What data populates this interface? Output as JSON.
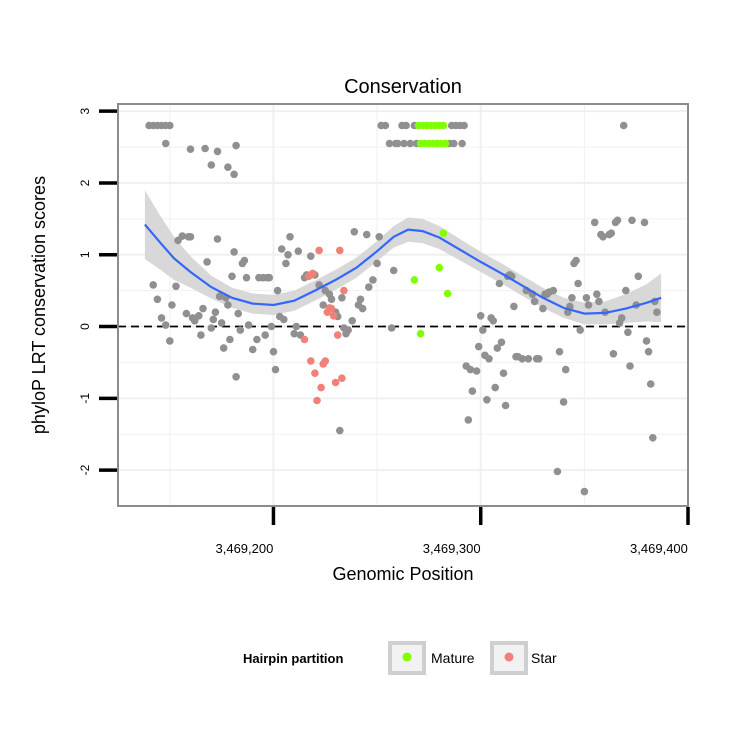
{
  "chart_data": {
    "type": "scatter",
    "title": "Conservation",
    "xlabel": "Genomic Position",
    "ylabel": "phyloP LRT conservation scores",
    "xlim": [
      3469125,
      3469400
    ],
    "ylim": [
      -2.5,
      3.1
    ],
    "x_ticks": [
      {
        "value": 3469200,
        "label": "3,469,200"
      },
      {
        "value": 3469300,
        "label": "3,469,300"
      },
      {
        "value": 3469400,
        "label": "3,469,400"
      }
    ],
    "y_ticks": [
      {
        "value": -2,
        "label": "-2"
      },
      {
        "value": -1,
        "label": "-1"
      },
      {
        "value": 0,
        "label": "0"
      },
      {
        "value": 1,
        "label": "1"
      },
      {
        "value": 2,
        "label": "2"
      },
      {
        "value": 3,
        "label": "3"
      }
    ],
    "grid": true,
    "reference_line": {
      "y": 0,
      "style": "dashed"
    },
    "legend": {
      "title": "Hairpin partition",
      "placement": "bottom",
      "entries": [
        {
          "label": "Mature",
          "color": "#7fff00"
        },
        {
          "label": "Star",
          "color": "#f08078"
        }
      ]
    },
    "colors": {
      "other": "#909090",
      "mature": "#7fff00",
      "star": "#f08078",
      "smooth": "#3366ff",
      "band": "#d4d4d4"
    },
    "series": [
      {
        "group": "other",
        "points": [
          [
            3469140,
            2.8
          ],
          [
            3469142,
            2.8
          ],
          [
            3469144,
            2.8
          ],
          [
            3469146,
            2.8
          ],
          [
            3469148,
            2.8
          ],
          [
            3469150,
            2.8
          ],
          [
            3469148,
            2.55
          ],
          [
            3469167,
            2.48
          ],
          [
            3469160,
            2.47
          ],
          [
            3469173,
            2.44
          ],
          [
            3469170,
            2.25
          ],
          [
            3469178,
            2.22
          ],
          [
            3469181,
            2.12
          ],
          [
            3469182,
            2.52
          ],
          [
            3469142,
            0.58
          ],
          [
            3469144,
            0.38
          ],
          [
            3469146,
            0.12
          ],
          [
            3469148,
            0.02
          ],
          [
            3469150,
            -0.2
          ],
          [
            3469151,
            0.3
          ],
          [
            3469153,
            0.56
          ],
          [
            3469154,
            1.2
          ],
          [
            3469156,
            1.26
          ],
          [
            3469158,
            0.18
          ],
          [
            3469159,
            1.25
          ],
          [
            3469160,
            1.25
          ],
          [
            3469161,
            0.12
          ],
          [
            3469162,
            0.08
          ],
          [
            3469164,
            0.15
          ],
          [
            3469165,
            -0.12
          ],
          [
            3469166,
            0.25
          ],
          [
            3469168,
            0.9
          ],
          [
            3469170,
            -0.02
          ],
          [
            3469171,
            0.1
          ],
          [
            3469172,
            0.2
          ],
          [
            3469173,
            1.22
          ],
          [
            3469174,
            0.42
          ],
          [
            3469175,
            0.05
          ],
          [
            3469176,
            -0.3
          ],
          [
            3469177,
            0.4
          ],
          [
            3469178,
            0.3
          ],
          [
            3469179,
            -0.18
          ],
          [
            3469180,
            0.7
          ],
          [
            3469181,
            1.04
          ],
          [
            3469182,
            -0.7
          ],
          [
            3469183,
            0.18
          ],
          [
            3469184,
            -0.05
          ],
          [
            3469185,
            0.88
          ],
          [
            3469186,
            0.92
          ],
          [
            3469187,
            0.68
          ],
          [
            3469188,
            0.02
          ],
          [
            3469190,
            -0.32
          ],
          [
            3469192,
            -0.18
          ],
          [
            3469193,
            0.68
          ],
          [
            3469195,
            0.68
          ],
          [
            3469196,
            -0.12
          ],
          [
            3469197,
            0.68
          ],
          [
            3469198,
            0.68
          ],
          [
            3469199,
            0.0
          ],
          [
            3469200,
            -0.35
          ],
          [
            3469201,
            -0.6
          ],
          [
            3469202,
            0.5
          ],
          [
            3469203,
            0.14
          ],
          [
            3469204,
            1.08
          ],
          [
            3469205,
            0.1
          ],
          [
            3469206,
            0.88
          ],
          [
            3469207,
            1.0
          ],
          [
            3469208,
            1.25
          ],
          [
            3469210,
            -0.1
          ],
          [
            3469211,
            0.0
          ],
          [
            3469212,
            1.05
          ],
          [
            3469213,
            -0.12
          ],
          [
            3469215,
            0.68
          ],
          [
            3469216,
            0.72
          ],
          [
            3469218,
            0.98
          ],
          [
            3469220,
            0.72
          ],
          [
            3469222,
            0.58
          ],
          [
            3469224,
            0.3
          ],
          [
            3469225,
            0.5
          ],
          [
            3469227,
            0.45
          ],
          [
            3469228,
            0.38
          ],
          [
            3469230,
            0.2
          ],
          [
            3469231,
            0.14
          ],
          [
            3469232,
            -1.45
          ],
          [
            3469233,
            0.4
          ],
          [
            3469234,
            -0.02
          ],
          [
            3469235,
            -0.1
          ],
          [
            3469236,
            -0.05
          ],
          [
            3469238,
            0.08
          ],
          [
            3469239,
            1.32
          ],
          [
            3469241,
            0.3
          ],
          [
            3469242,
            0.38
          ],
          [
            3469243,
            0.25
          ],
          [
            3469245,
            1.28
          ],
          [
            3469246,
            0.55
          ],
          [
            3469248,
            0.65
          ],
          [
            3469250,
            0.88
          ],
          [
            3469251,
            1.25
          ],
          [
            3469252,
            2.8
          ],
          [
            3469254,
            2.8
          ],
          [
            3469256,
            2.55
          ],
          [
            3469257,
            -0.02
          ],
          [
            3469258,
            0.78
          ],
          [
            3469259,
            2.55
          ],
          [
            3469260,
            2.55
          ],
          [
            3469262,
            2.8
          ],
          [
            3469263,
            2.55
          ],
          [
            3469264,
            2.8
          ],
          [
            3469266,
            2.55
          ],
          [
            3469268,
            2.8
          ],
          [
            3469269,
            2.55
          ],
          [
            3469285,
            2.55
          ],
          [
            3469286,
            2.8
          ],
          [
            3469287,
            2.55
          ],
          [
            3469288,
            2.8
          ],
          [
            3469290,
            2.8
          ],
          [
            3469291,
            2.55
          ],
          [
            3469292,
            2.8
          ],
          [
            3469293,
            -0.55
          ],
          [
            3469294,
            -1.3
          ],
          [
            3469295,
            -0.6
          ],
          [
            3469296,
            -0.9
          ],
          [
            3469298,
            -0.62
          ],
          [
            3469299,
            -0.28
          ],
          [
            3469300,
            0.15
          ],
          [
            3469301,
            -0.05
          ],
          [
            3469302,
            -0.4
          ],
          [
            3469303,
            -1.02
          ],
          [
            3469304,
            -0.45
          ],
          [
            3469305,
            0.12
          ],
          [
            3469306,
            0.08
          ],
          [
            3469307,
            -0.85
          ],
          [
            3469308,
            -0.3
          ],
          [
            3469309,
            0.6
          ],
          [
            3469310,
            -0.22
          ],
          [
            3469311,
            -0.65
          ],
          [
            3469312,
            -1.1
          ],
          [
            3469313,
            0.7
          ],
          [
            3469314,
            0.72
          ],
          [
            3469315,
            0.7
          ],
          [
            3469316,
            0.28
          ],
          [
            3469317,
            -0.42
          ],
          [
            3469318,
            -0.42
          ],
          [
            3469320,
            -0.45
          ],
          [
            3469322,
            0.5
          ],
          [
            3469323,
            -0.45
          ],
          [
            3469325,
            0.45
          ],
          [
            3469326,
            0.35
          ],
          [
            3469327,
            -0.45
          ],
          [
            3469328,
            -0.45
          ],
          [
            3469330,
            0.25
          ],
          [
            3469331,
            0.45
          ],
          [
            3469332,
            0.45
          ],
          [
            3469333,
            0.48
          ],
          [
            3469335,
            0.5
          ],
          [
            3469337,
            -2.02
          ],
          [
            3469338,
            -0.35
          ],
          [
            3469340,
            -1.05
          ],
          [
            3469341,
            -0.6
          ],
          [
            3469342,
            0.2
          ],
          [
            3469343,
            0.28
          ],
          [
            3469344,
            0.4
          ],
          [
            3469345,
            0.88
          ],
          [
            3469346,
            0.92
          ],
          [
            3469347,
            0.6
          ],
          [
            3469348,
            -0.05
          ],
          [
            3469350,
            -2.3
          ],
          [
            3469351,
            0.4
          ],
          [
            3469352,
            0.3
          ],
          [
            3469355,
            1.45
          ],
          [
            3469356,
            0.45
          ],
          [
            3469357,
            0.35
          ],
          [
            3469358,
            1.28
          ],
          [
            3469359,
            1.25
          ],
          [
            3469360,
            0.2
          ],
          [
            3469362,
            1.28
          ],
          [
            3469363,
            1.3
          ],
          [
            3469364,
            -0.38
          ],
          [
            3469365,
            1.45
          ],
          [
            3469366,
            1.48
          ],
          [
            3469367,
            0.05
          ],
          [
            3469368,
            0.12
          ],
          [
            3469369,
            2.8
          ],
          [
            3469370,
            0.5
          ],
          [
            3469371,
            -0.08
          ],
          [
            3469372,
            -0.55
          ],
          [
            3469373,
            1.48
          ],
          [
            3469375,
            0.3
          ],
          [
            3469376,
            0.7
          ],
          [
            3469379,
            1.45
          ],
          [
            3469380,
            -0.2
          ],
          [
            3469381,
            -0.35
          ],
          [
            3469382,
            -0.8
          ],
          [
            3469383,
            -1.55
          ],
          [
            3469384,
            0.35
          ],
          [
            3469385,
            0.2
          ]
        ]
      },
      {
        "group": "mature",
        "name": "Mature",
        "points": [
          [
            3469270,
            2.8
          ],
          [
            3469272,
            2.8
          ],
          [
            3469274,
            2.8
          ],
          [
            3469276,
            2.8
          ],
          [
            3469278,
            2.8
          ],
          [
            3469280,
            2.8
          ],
          [
            3469282,
            2.8
          ],
          [
            3469271,
            2.55
          ],
          [
            3469273,
            2.55
          ],
          [
            3469275,
            2.55
          ],
          [
            3469277,
            2.55
          ],
          [
            3469279,
            2.55
          ],
          [
            3469281,
            2.55
          ],
          [
            3469283,
            2.55
          ],
          [
            3469268,
            0.65
          ],
          [
            3469271,
            -0.1
          ],
          [
            3469280,
            0.82
          ],
          [
            3469282,
            1.3
          ],
          [
            3469284,
            0.46
          ]
        ]
      },
      {
        "group": "star",
        "name": "Star",
        "points": [
          [
            3469215,
            -0.18
          ],
          [
            3469217,
            0.7
          ],
          [
            3469218,
            0.72
          ],
          [
            3469219,
            0.74
          ],
          [
            3469218,
            -0.48
          ],
          [
            3469220,
            -0.65
          ],
          [
            3469221,
            -1.03
          ],
          [
            3469222,
            1.06
          ],
          [
            3469223,
            -0.85
          ],
          [
            3469224,
            -0.52
          ],
          [
            3469225,
            -0.48
          ],
          [
            3469226,
            0.2
          ],
          [
            3469227,
            0.26
          ],
          [
            3469228,
            0.25
          ],
          [
            3469229,
            0.15
          ],
          [
            3469230,
            -0.78
          ],
          [
            3469231,
            -0.12
          ],
          [
            3469232,
            1.06
          ],
          [
            3469233,
            -0.72
          ],
          [
            3469234,
            0.5
          ]
        ]
      }
    ],
    "smooth": [
      [
        3469138,
        1.42
      ],
      [
        3469145,
        1.18
      ],
      [
        3469152,
        0.95
      ],
      [
        3469160,
        0.76
      ],
      [
        3469170,
        0.55
      ],
      [
        3469180,
        0.4
      ],
      [
        3469190,
        0.32
      ],
      [
        3469200,
        0.3
      ],
      [
        3469210,
        0.36
      ],
      [
        3469220,
        0.5
      ],
      [
        3469230,
        0.65
      ],
      [
        3469240,
        0.82
      ],
      [
        3469250,
        1.05
      ],
      [
        3469258,
        1.25
      ],
      [
        3469265,
        1.35
      ],
      [
        3469272,
        1.33
      ],
      [
        3469280,
        1.24
      ],
      [
        3469290,
        1.07
      ],
      [
        3469300,
        0.9
      ],
      [
        3469310,
        0.74
      ],
      [
        3469320,
        0.57
      ],
      [
        3469330,
        0.4
      ],
      [
        3469340,
        0.26
      ],
      [
        3469350,
        0.18
      ],
      [
        3469360,
        0.19
      ],
      [
        3469370,
        0.25
      ],
      [
        3469380,
        0.33
      ],
      [
        3469387,
        0.4
      ]
    ],
    "smooth_band_halfwidth": [
      0.48,
      0.38,
      0.3,
      0.22,
      0.16,
      0.14,
      0.14,
      0.14,
      0.14,
      0.14,
      0.14,
      0.14,
      0.14,
      0.15,
      0.17,
      0.17,
      0.16,
      0.15,
      0.14,
      0.14,
      0.14,
      0.14,
      0.14,
      0.15,
      0.16,
      0.2,
      0.26,
      0.34
    ]
  }
}
